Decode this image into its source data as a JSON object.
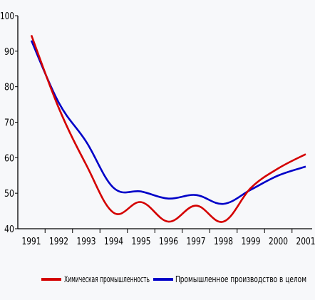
{
  "chart_data": {
    "type": "line",
    "x": [
      "1991",
      "1992",
      "1993",
      "1994",
      "1995",
      "1996",
      "1997",
      "1998",
      "1999",
      "2000",
      "2001"
    ],
    "ylim": [
      40,
      100
    ],
    "yticks": [
      40,
      50,
      60,
      70,
      80,
      90,
      100
    ],
    "ytick_labels": [
      "40",
      "50",
      "60",
      "70",
      "80",
      "90",
      "100"
    ],
    "grid": false,
    "legend_position": "bottom",
    "series": [
      {
        "name": "Химическая промышленность",
        "color": "#d40000",
        "values": [
          94.5,
          74,
          58,
          44.5,
          47.5,
          42,
          46.5,
          42,
          51.5,
          57,
          61
        ]
      },
      {
        "name": "Промышленное производство в целом",
        "color": "#0000c8",
        "values": [
          93,
          75.5,
          64.5,
          51.5,
          50.5,
          48.5,
          49.5,
          47,
          51,
          55,
          57.5
        ]
      }
    ]
  }
}
